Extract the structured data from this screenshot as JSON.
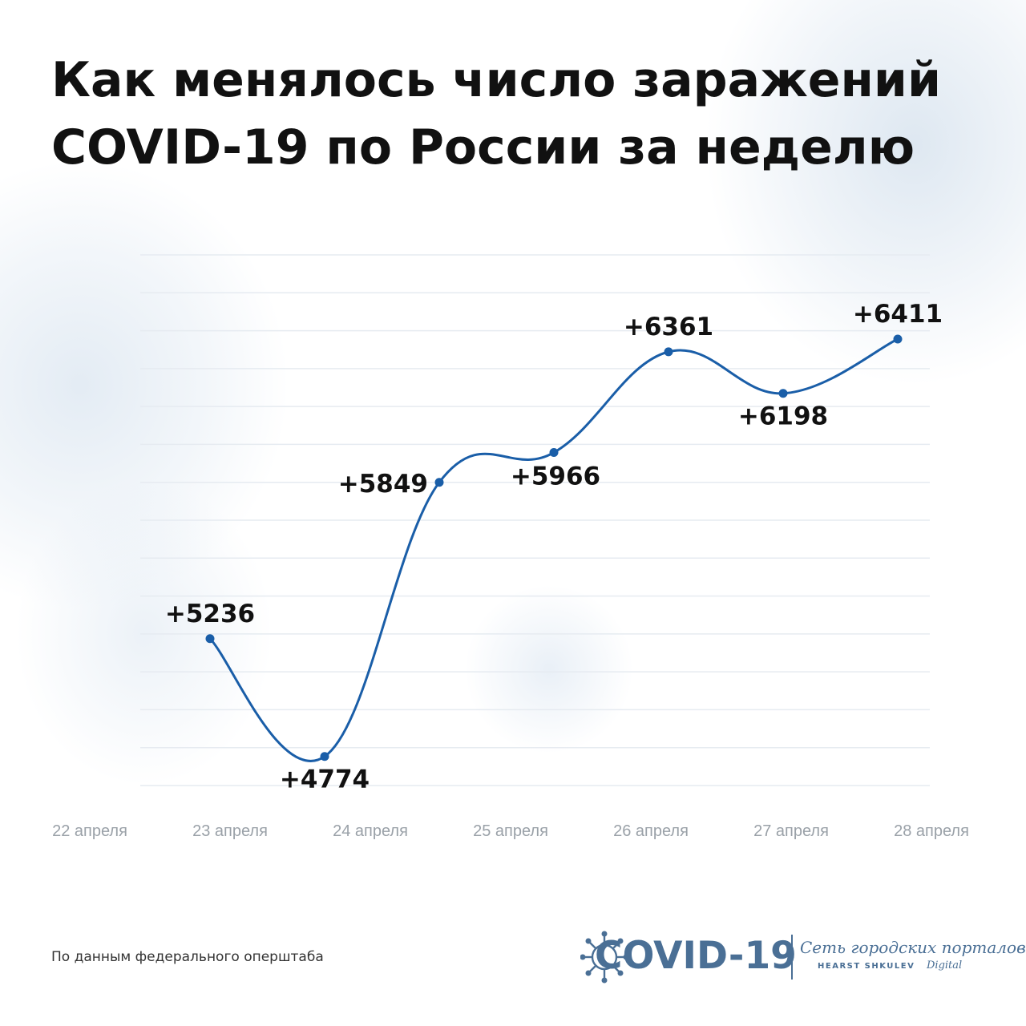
{
  "title_lines": [
    "Как менялось число заражений",
    "COVID-19 по России за неделю"
  ],
  "source": "По данным федерального оперштаба",
  "logo": {
    "text": "COVID-19",
    "network": "Сеть городских порталов",
    "brand": "HEARST SHKULEV",
    "digital": "Digital"
  },
  "colors": {
    "line": "#1a5ea8",
    "title": "#111111",
    "tick_labels": "#9aa1a8",
    "logo": "#4a6f95",
    "background_decor": "#d4e1ee"
  },
  "chart_data": {
    "type": "line",
    "categories": [
      "22 апреля",
      "23 апреля",
      "24 апреля",
      "25 апреля",
      "26 апреля",
      "27 апреля",
      "28 апреля"
    ],
    "series": [
      {
        "values": [
          5236,
          4774,
          5849,
          5966,
          6361,
          6198,
          6411
        ],
        "labels": [
          "+5236",
          "+4774",
          "+5849",
          "+5966",
          "+6361",
          "+6198",
          "+6411"
        ]
      }
    ],
    "ylim": [
      4660,
      6741
    ],
    "grid": true,
    "smooth": true
  }
}
